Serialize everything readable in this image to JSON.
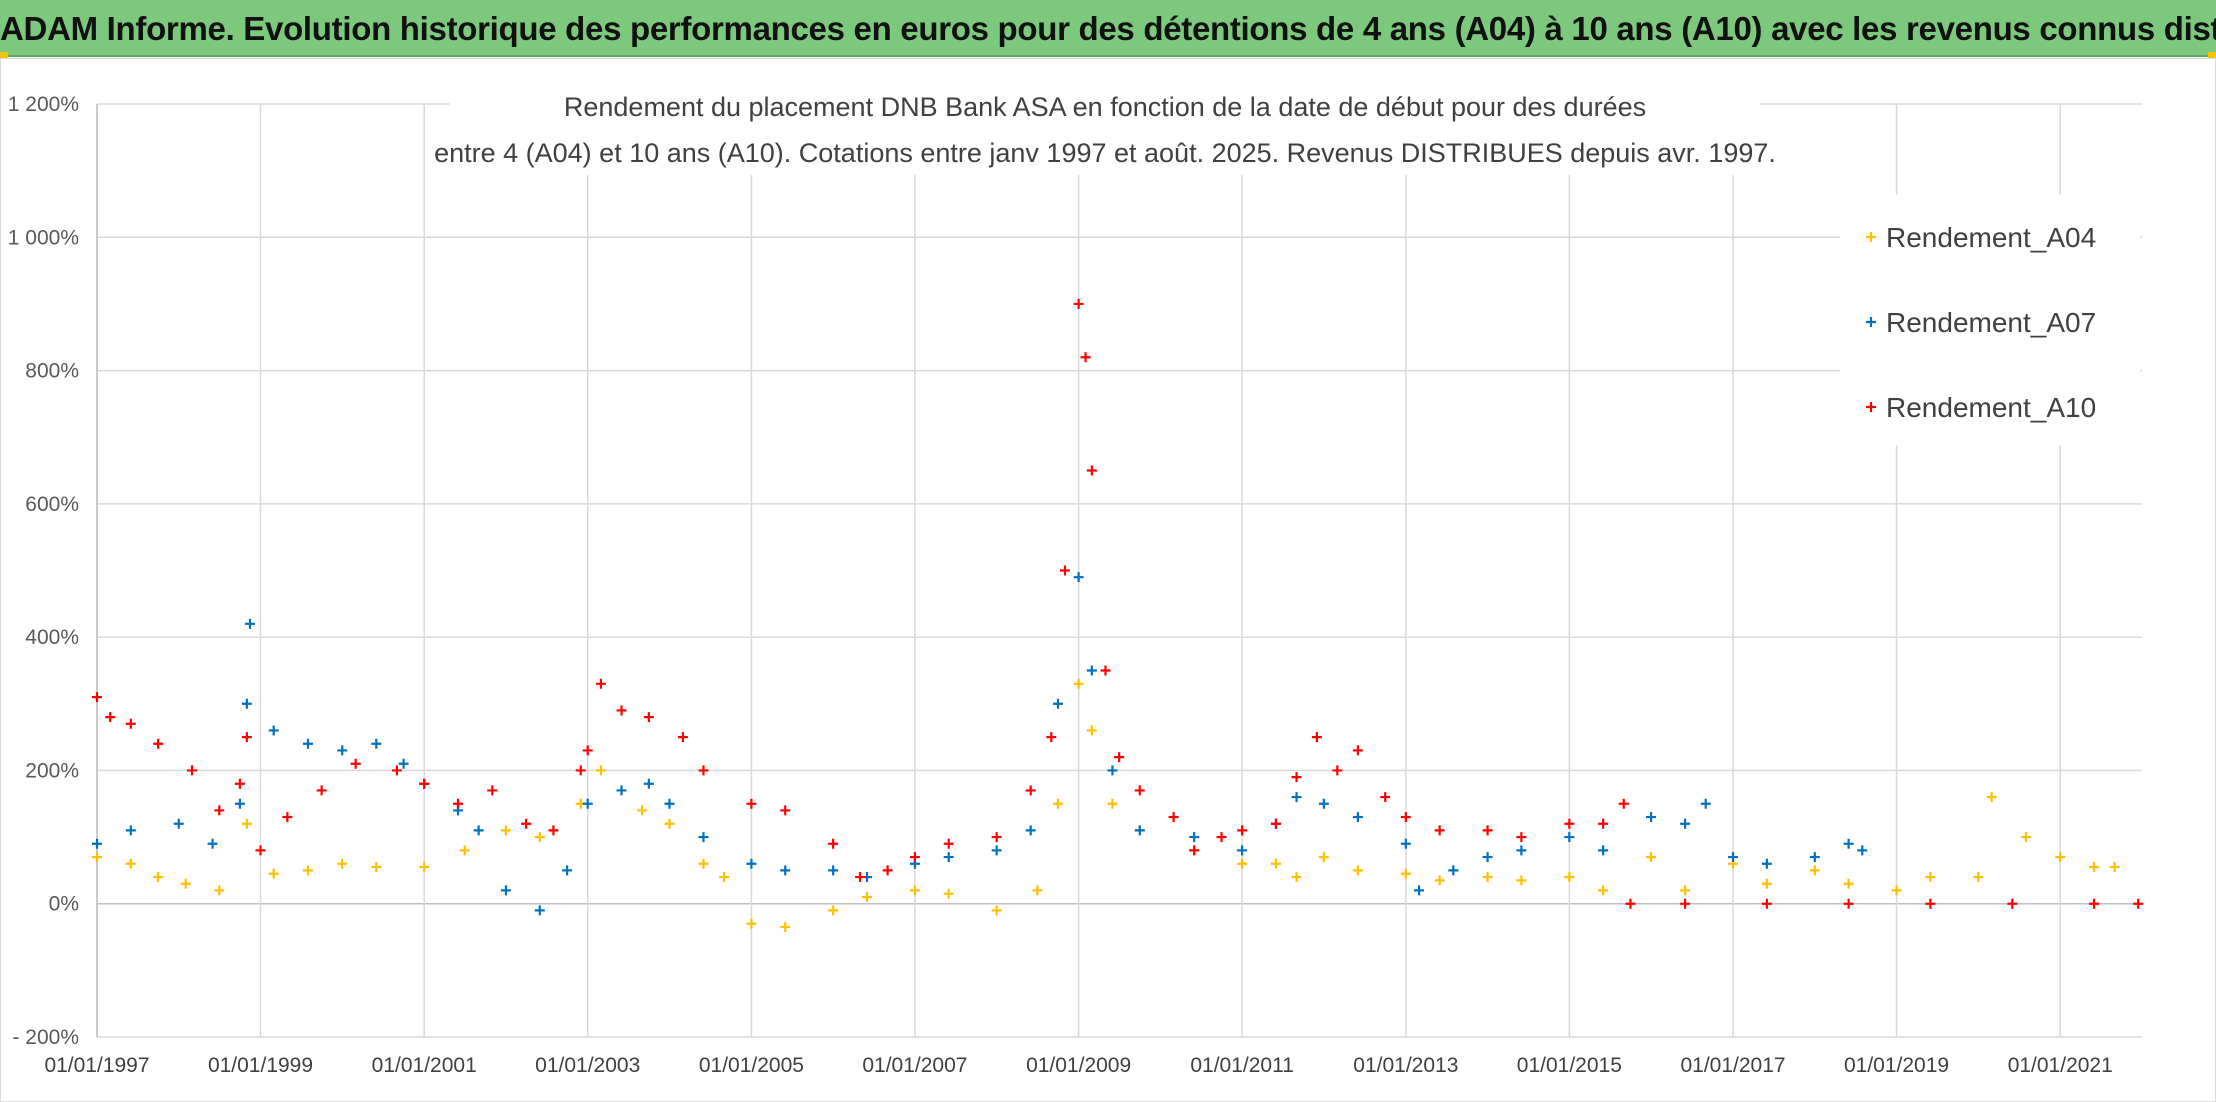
{
  "header": {
    "title": "ADAM Informe. Evolution historique des performances en euros pour des détentions de 4 ans (A04) à 10 ans (A10) avec les revenus connus distribués"
  },
  "chart_data": {
    "type": "scatter",
    "title_lines": [
      "Rendement du placement DNB Bank ASA en fonction de la date de début pour des durées",
      "entre 4 (A04) et 10 ans (A10). Cotations entre janv 1997 et août. 2025. Revenus DISTRIBUES depuis avr. 1997."
    ],
    "xlabel": "",
    "ylabel": "",
    "x_ticks": [
      "01/01/1997",
      "01/01/1999",
      "01/01/2001",
      "01/01/2003",
      "01/01/2005",
      "01/01/2007",
      "01/01/2009",
      "01/01/2011",
      "01/01/2013",
      "01/01/2015",
      "01/01/2017",
      "01/01/2019",
      "01/01/2021"
    ],
    "xlim": [
      "1997-01-01",
      "2022-01-01"
    ],
    "y_ticks": [
      "- 200%",
      "0%",
      "200%",
      "400%",
      "600%",
      "800%",
      "1 000%",
      "1 200%"
    ],
    "ylim": [
      -200,
      1200
    ],
    "y_unit": "%",
    "grid": true,
    "legend_position": "top-right",
    "marker": "+",
    "series": [
      {
        "name": "Rendement_A04",
        "color": "#ffc000",
        "points": [
          [
            "1997-01-01",
            70
          ],
          [
            "1997-06-01",
            60
          ],
          [
            "1997-10-01",
            40
          ],
          [
            "1998-02-01",
            30
          ],
          [
            "1998-07-01",
            20
          ],
          [
            "1998-11-01",
            120
          ],
          [
            "1999-03-01",
            45
          ],
          [
            "1999-08-01",
            50
          ],
          [
            "2000-01-01",
            60
          ],
          [
            "2000-06-01",
            55
          ],
          [
            "2001-01-01",
            55
          ],
          [
            "2001-07-01",
            80
          ],
          [
            "2002-01-01",
            110
          ],
          [
            "2002-06-01",
            100
          ],
          [
            "2002-12-01",
            150
          ],
          [
            "2003-03-01",
            200
          ],
          [
            "2003-09-01",
            140
          ],
          [
            "2004-01-01",
            120
          ],
          [
            "2004-06-01",
            60
          ],
          [
            "2004-09-01",
            40
          ],
          [
            "2005-01-01",
            -30
          ],
          [
            "2005-06-01",
            -35
          ],
          [
            "2006-01-01",
            -10
          ],
          [
            "2006-06-01",
            10
          ],
          [
            "2007-01-01",
            20
          ],
          [
            "2007-06-01",
            15
          ],
          [
            "2008-01-01",
            -10
          ],
          [
            "2008-07-01",
            20
          ],
          [
            "2008-10-01",
            150
          ],
          [
            "2009-01-01",
            330
          ],
          [
            "2009-03-01",
            260
          ],
          [
            "2009-06-01",
            150
          ],
          [
            "2009-10-01",
            110
          ],
          [
            "2010-06-01",
            80
          ],
          [
            "2011-01-01",
            60
          ],
          [
            "2011-06-01",
            60
          ],
          [
            "2011-09-01",
            40
          ],
          [
            "2012-01-01",
            70
          ],
          [
            "2012-06-01",
            50
          ],
          [
            "2013-01-01",
            45
          ],
          [
            "2013-06-01",
            35
          ],
          [
            "2014-01-01",
            40
          ],
          [
            "2014-06-01",
            35
          ],
          [
            "2015-01-01",
            40
          ],
          [
            "2015-06-01",
            20
          ],
          [
            "2016-01-01",
            70
          ],
          [
            "2016-06-01",
            20
          ],
          [
            "2017-01-01",
            60
          ],
          [
            "2017-06-01",
            30
          ],
          [
            "2018-01-01",
            50
          ],
          [
            "2018-06-01",
            30
          ],
          [
            "2019-01-01",
            20
          ],
          [
            "2019-06-01",
            40
          ],
          [
            "2020-01-01",
            40
          ],
          [
            "2020-03-01",
            160
          ],
          [
            "2020-08-01",
            100
          ],
          [
            "2021-01-01",
            70
          ],
          [
            "2021-06-01",
            55
          ],
          [
            "2021-09-01",
            55
          ]
        ]
      },
      {
        "name": "Rendement_A07",
        "color": "#0070c0",
        "points": [
          [
            "1997-01-01",
            90
          ],
          [
            "1997-06-01",
            110
          ],
          [
            "1998-01-01",
            120
          ],
          [
            "1998-06-01",
            90
          ],
          [
            "1998-10-01",
            150
          ],
          [
            "1998-11-01",
            300
          ],
          [
            "1998-11-15",
            420
          ],
          [
            "1999-03-01",
            260
          ],
          [
            "1999-08-01",
            240
          ],
          [
            "2000-01-01",
            230
          ],
          [
            "2000-06-01",
            240
          ],
          [
            "2000-10-01",
            210
          ],
          [
            "2001-01-01",
            180
          ],
          [
            "2001-06-01",
            140
          ],
          [
            "2001-09-01",
            110
          ],
          [
            "2002-01-01",
            20
          ],
          [
            "2002-06-01",
            -10
          ],
          [
            "2002-10-01",
            50
          ],
          [
            "2003-01-01",
            150
          ],
          [
            "2003-06-01",
            170
          ],
          [
            "2003-10-01",
            180
          ],
          [
            "2004-01-01",
            150
          ],
          [
            "2004-06-01",
            100
          ],
          [
            "2005-01-01",
            60
          ],
          [
            "2005-06-01",
            50
          ],
          [
            "2006-01-01",
            50
          ],
          [
            "2006-06-01",
            40
          ],
          [
            "2007-01-01",
            60
          ],
          [
            "2007-06-01",
            70
          ],
          [
            "2008-01-01",
            80
          ],
          [
            "2008-06-01",
            110
          ],
          [
            "2008-10-01",
            300
          ],
          [
            "2009-01-01",
            490
          ],
          [
            "2009-03-01",
            350
          ],
          [
            "2009-06-01",
            200
          ],
          [
            "2009-10-01",
            110
          ],
          [
            "2010-06-01",
            100
          ],
          [
            "2011-01-01",
            80
          ],
          [
            "2011-06-01",
            120
          ],
          [
            "2011-09-01",
            160
          ],
          [
            "2012-01-01",
            150
          ],
          [
            "2012-06-01",
            130
          ],
          [
            "2013-01-01",
            90
          ],
          [
            "2013-03-01",
            20
          ],
          [
            "2013-08-01",
            50
          ],
          [
            "2014-01-01",
            70
          ],
          [
            "2014-06-01",
            80
          ],
          [
            "2015-01-01",
            100
          ],
          [
            "2015-06-01",
            80
          ],
          [
            "2016-01-01",
            130
          ],
          [
            "2016-06-01",
            120
          ],
          [
            "2016-09-01",
            150
          ],
          [
            "2017-01-01",
            70
          ],
          [
            "2017-06-01",
            60
          ],
          [
            "2018-01-01",
            70
          ],
          [
            "2018-06-01",
            90
          ],
          [
            "2018-08-01",
            80
          ]
        ]
      },
      {
        "name": "Rendement_A10",
        "color": "#ff0000",
        "points": [
          [
            "1997-01-01",
            310
          ],
          [
            "1997-03-01",
            280
          ],
          [
            "1997-06-01",
            270
          ],
          [
            "1997-10-01",
            240
          ],
          [
            "1998-03-01",
            200
          ],
          [
            "1998-07-01",
            140
          ],
          [
            "1998-10-01",
            180
          ],
          [
            "1998-11-01",
            250
          ],
          [
            "1999-01-01",
            80
          ],
          [
            "1999-05-01",
            130
          ],
          [
            "1999-10-01",
            170
          ],
          [
            "2000-03-01",
            210
          ],
          [
            "2000-09-01",
            200
          ],
          [
            "2001-01-01",
            180
          ],
          [
            "2001-06-01",
            150
          ],
          [
            "2001-11-01",
            170
          ],
          [
            "2002-04-01",
            120
          ],
          [
            "2002-08-01",
            110
          ],
          [
            "2002-12-01",
            200
          ],
          [
            "2003-01-01",
            230
          ],
          [
            "2003-03-01",
            330
          ],
          [
            "2003-06-01",
            290
          ],
          [
            "2003-10-01",
            280
          ],
          [
            "2004-03-01",
            250
          ],
          [
            "2004-06-01",
            200
          ],
          [
            "2005-01-01",
            150
          ],
          [
            "2005-06-01",
            140
          ],
          [
            "2006-01-01",
            90
          ],
          [
            "2006-05-01",
            40
          ],
          [
            "2006-09-01",
            50
          ],
          [
            "2007-01-01",
            70
          ],
          [
            "2007-06-01",
            90
          ],
          [
            "2008-01-01",
            100
          ],
          [
            "2008-06-01",
            170
          ],
          [
            "2008-09-01",
            250
          ],
          [
            "2008-11-01",
            500
          ],
          [
            "2009-01-01",
            900
          ],
          [
            "2009-02-01",
            820
          ],
          [
            "2009-03-01",
            650
          ],
          [
            "2009-05-01",
            350
          ],
          [
            "2009-07-01",
            220
          ],
          [
            "2009-10-01",
            170
          ],
          [
            "2010-03-01",
            130
          ],
          [
            "2010-06-01",
            80
          ],
          [
            "2010-10-01",
            100
          ],
          [
            "2011-01-01",
            110
          ],
          [
            "2011-06-01",
            120
          ],
          [
            "2011-09-01",
            190
          ],
          [
            "2011-12-01",
            250
          ],
          [
            "2012-03-01",
            200
          ],
          [
            "2012-06-01",
            230
          ],
          [
            "2012-10-01",
            160
          ],
          [
            "2013-01-01",
            130
          ],
          [
            "2013-06-01",
            110
          ],
          [
            "2014-01-01",
            110
          ],
          [
            "2014-06-01",
            100
          ],
          [
            "2015-01-01",
            120
          ],
          [
            "2015-06-01",
            120
          ],
          [
            "2015-09-01",
            150
          ],
          [
            "2015-10-01",
            0
          ],
          [
            "2016-06-01",
            0
          ],
          [
            "2017-06-01",
            0
          ],
          [
            "2018-06-01",
            0
          ],
          [
            "2019-06-01",
            0
          ],
          [
            "2020-06-01",
            0
          ],
          [
            "2021-06-01",
            0
          ],
          [
            "2021-12-15",
            0
          ]
        ]
      }
    ]
  }
}
